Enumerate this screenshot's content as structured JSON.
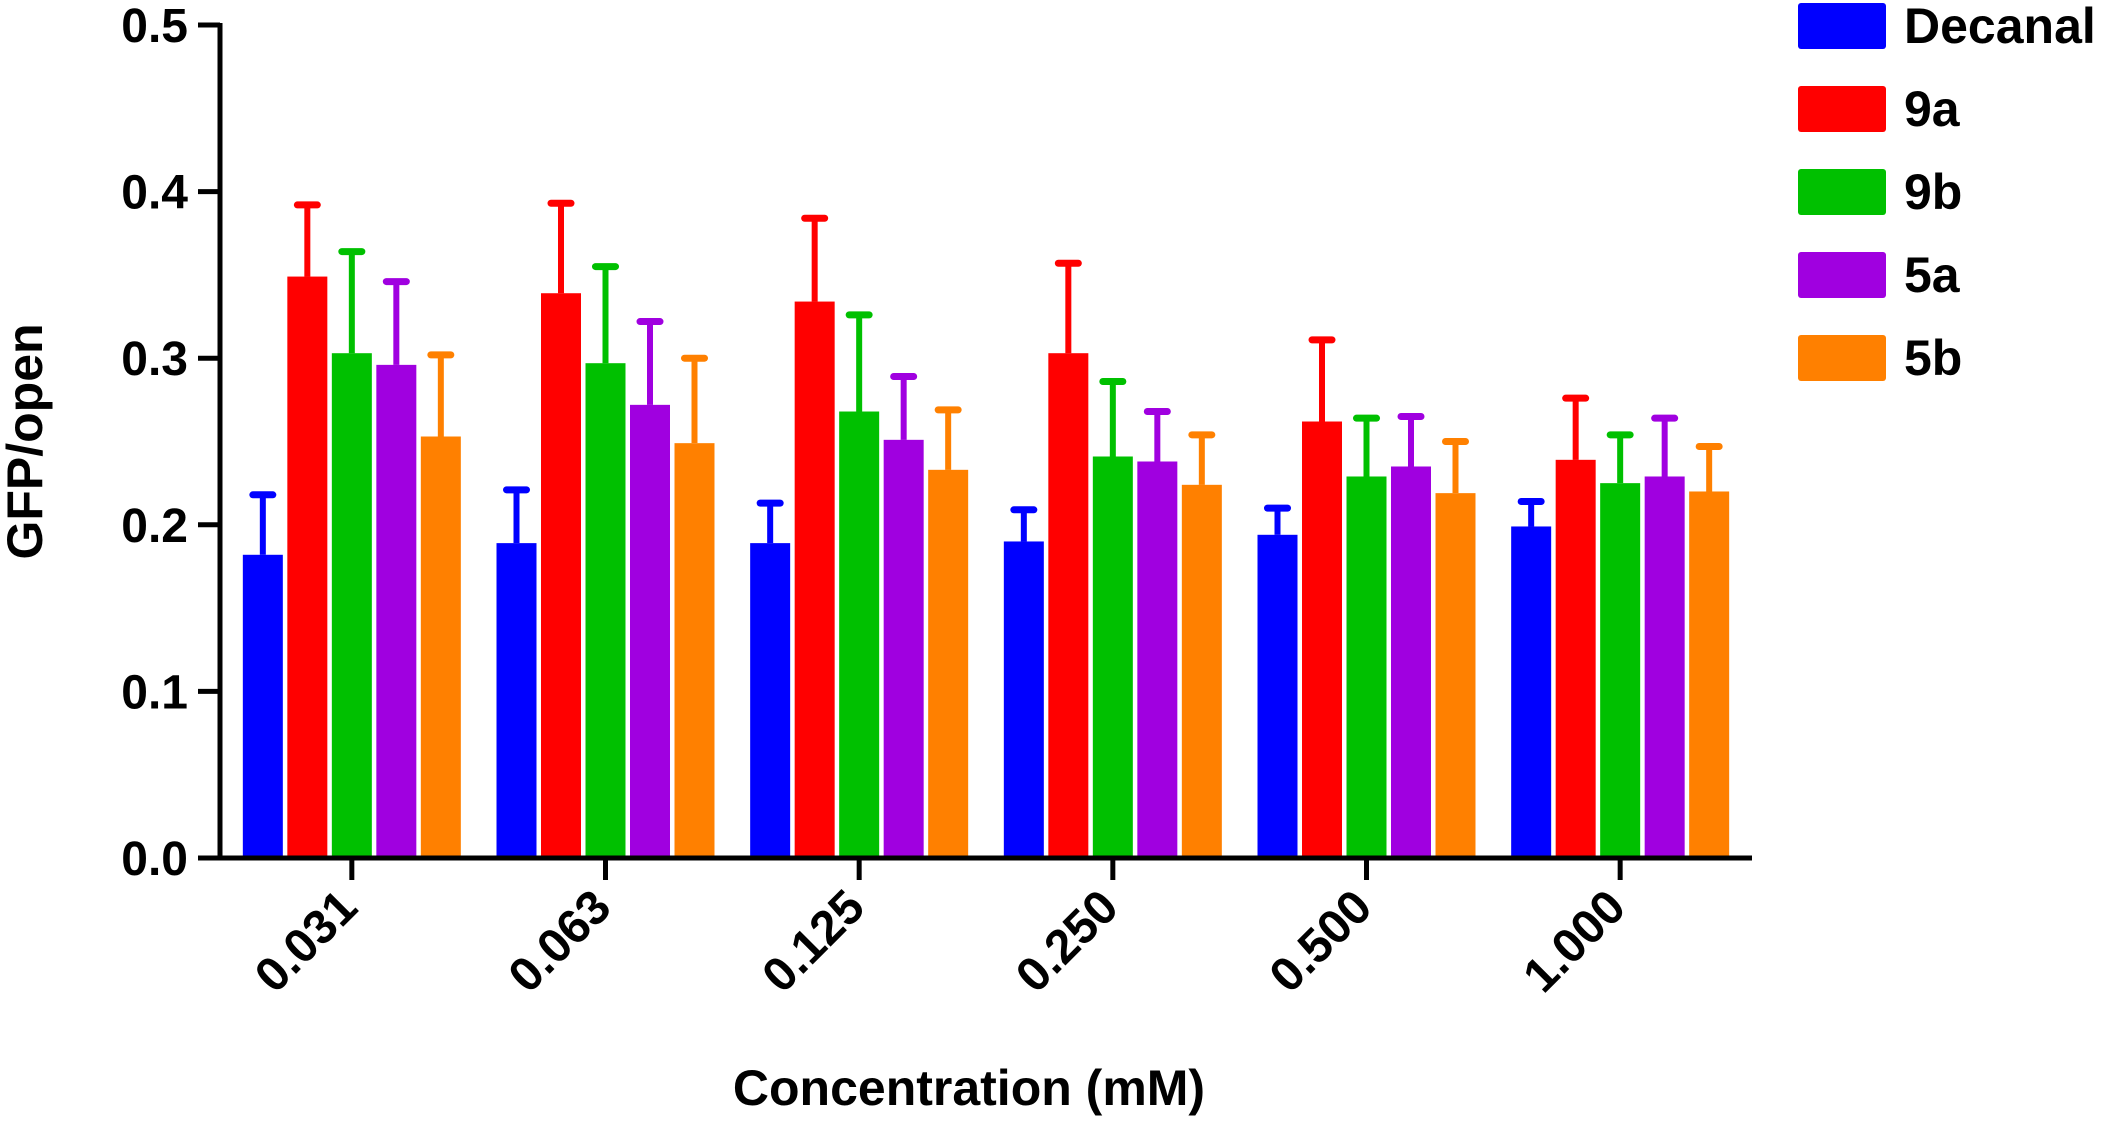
{
  "chart_data": {
    "type": "bar",
    "title": "",
    "xlabel": "Concentration (mM)",
    "ylabel": "GFP/open",
    "ylim": [
      0,
      0.5
    ],
    "yticks": [
      "0.0",
      "0.1",
      "0.2",
      "0.3",
      "0.4",
      "0.5"
    ],
    "categories": [
      "0.031",
      "0.063",
      "0.125",
      "0.250",
      "0.500",
      "1.000"
    ],
    "legend_position": "top-right",
    "grid": false,
    "series": [
      {
        "name": "Decanal",
        "color": "#0000ff",
        "values": [
          0.182,
          0.189,
          0.189,
          0.19,
          0.194,
          0.199
        ],
        "errors": [
          0.036,
          0.032,
          0.024,
          0.019,
          0.016,
          0.015
        ]
      },
      {
        "name": "9a",
        "color": "#ff0000",
        "values": [
          0.349,
          0.339,
          0.334,
          0.303,
          0.262,
          0.239
        ],
        "errors": [
          0.043,
          0.054,
          0.05,
          0.054,
          0.049,
          0.037
        ]
      },
      {
        "name": "9b",
        "color": "#00c000",
        "values": [
          0.303,
          0.297,
          0.268,
          0.241,
          0.229,
          0.225
        ],
        "errors": [
          0.061,
          0.058,
          0.058,
          0.045,
          0.035,
          0.029
        ]
      },
      {
        "name": "5a",
        "color": "#a000e0",
        "values": [
          0.296,
          0.272,
          0.251,
          0.238,
          0.235,
          0.229
        ],
        "errors": [
          0.05,
          0.05,
          0.038,
          0.03,
          0.03,
          0.035
        ]
      },
      {
        "name": "5b",
        "color": "#ff8000",
        "values": [
          0.253,
          0.249,
          0.233,
          0.224,
          0.219,
          0.22
        ],
        "errors": [
          0.049,
          0.051,
          0.036,
          0.03,
          0.031,
          0.027
        ]
      }
    ]
  }
}
